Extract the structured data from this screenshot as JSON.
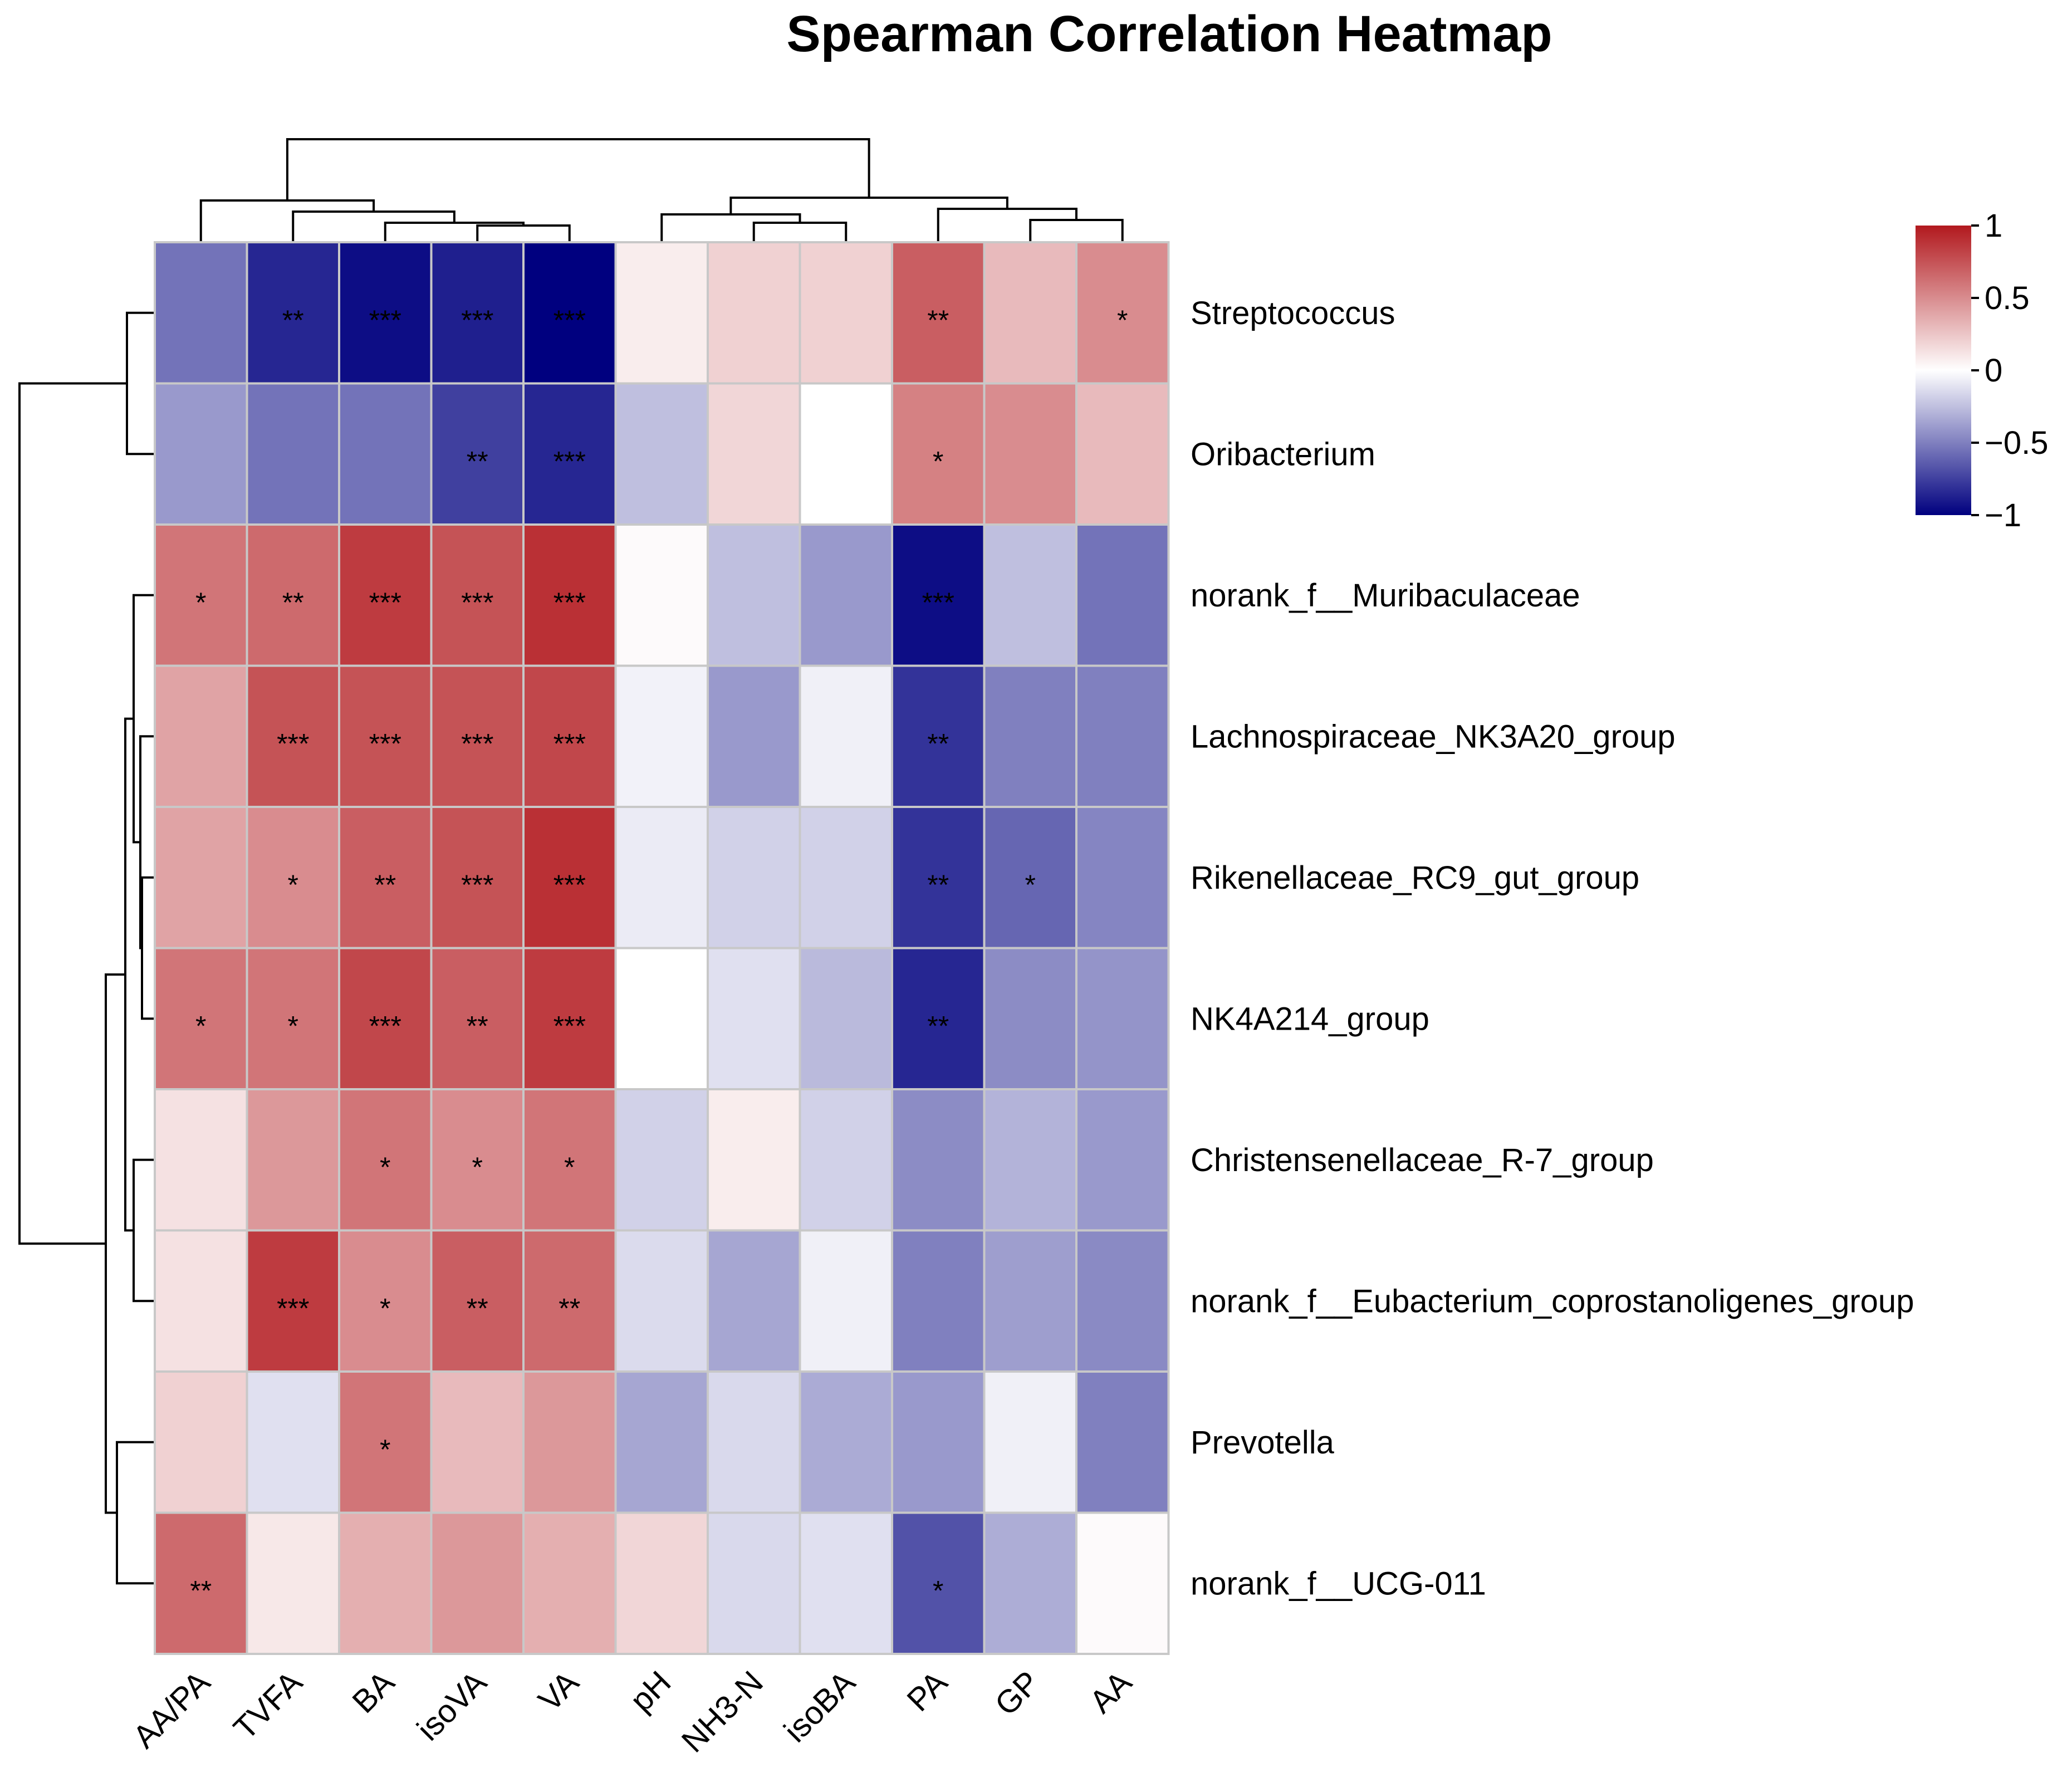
{
  "chart_data": {
    "type": "heatmap",
    "title": "Spearman Correlation Heatmap",
    "columns": [
      "AA/PA",
      "TVFA",
      "BA",
      "isoVA",
      "VA",
      "pH",
      "NH3-N",
      "isoBA",
      "PA",
      "GP",
      "AA"
    ],
    "rows": [
      "Streptococcus",
      "Oribacterium",
      "norank_f__Muribaculaceae",
      "Lachnospiraceae_NK3A20_group",
      "Rikenellaceae_RC9_gut_group",
      "NK4A214_group",
      "Christensenellaceae_R-7_group",
      "norank_f__Eubacterium_coprostanoligenes_group",
      "Prevotella",
      "norank_f__UCG-011"
    ],
    "values": [
      [
        -0.55,
        -0.85,
        -0.95,
        -0.88,
        -1.0,
        0.08,
        0.2,
        0.2,
        0.7,
        0.3,
        0.5
      ],
      [
        -0.4,
        -0.55,
        -0.55,
        -0.75,
        -0.85,
        -0.25,
        0.18,
        0.0,
        0.55,
        0.5,
        0.3
      ],
      [
        0.6,
        0.65,
        0.85,
        0.75,
        0.9,
        0.02,
        -0.25,
        -0.4,
        -0.95,
        -0.25,
        -0.55
      ],
      [
        0.4,
        0.75,
        0.75,
        0.75,
        0.8,
        -0.05,
        -0.4,
        -0.06,
        -0.8,
        -0.5,
        -0.5
      ],
      [
        0.4,
        0.5,
        0.7,
        0.75,
        0.9,
        -0.08,
        -0.18,
        -0.18,
        -0.8,
        -0.6,
        -0.48
      ],
      [
        0.6,
        0.6,
        0.8,
        0.7,
        0.85,
        0.0,
        -0.12,
        -0.27,
        -0.85,
        -0.45,
        -0.42
      ],
      [
        0.13,
        0.45,
        0.6,
        0.5,
        0.6,
        -0.18,
        0.08,
        -0.18,
        -0.45,
        -0.3,
        -0.4
      ],
      [
        0.13,
        0.85,
        0.5,
        0.7,
        0.65,
        -0.14,
        -0.35,
        -0.06,
        -0.5,
        -0.38,
        -0.46
      ],
      [
        0.2,
        -0.12,
        0.6,
        0.3,
        0.45,
        -0.35,
        -0.15,
        -0.33,
        -0.4,
        -0.06,
        -0.5
      ],
      [
        0.65,
        0.1,
        0.35,
        0.45,
        0.35,
        0.18,
        -0.15,
        -0.12,
        -0.68,
        -0.32,
        0.02
      ]
    ],
    "significance": [
      [
        "",
        "**",
        "***",
        "***",
        "***",
        "",
        "",
        "",
        "**",
        "",
        "*"
      ],
      [
        "",
        "",
        "",
        "**",
        "***",
        "",
        "",
        "",
        "*",
        "",
        ""
      ],
      [
        "*",
        "**",
        "***",
        "***",
        "***",
        "",
        "",
        "",
        "***",
        "",
        ""
      ],
      [
        "",
        "***",
        "***",
        "***",
        "***",
        "",
        "",
        "",
        "**",
        "",
        ""
      ],
      [
        "",
        "*",
        "**",
        "***",
        "***",
        "",
        "",
        "",
        "**",
        "*",
        ""
      ],
      [
        "*",
        "*",
        "***",
        "**",
        "***",
        "",
        "",
        "",
        "**",
        "",
        ""
      ],
      [
        "",
        "",
        "*",
        "*",
        "*",
        "",
        "",
        "",
        "",
        "",
        ""
      ],
      [
        "",
        "***",
        "*",
        "**",
        "**",
        "",
        "",
        "",
        "",
        "",
        ""
      ],
      [
        "",
        "",
        "*",
        "",
        "",
        "",
        "",
        "",
        "",
        "",
        ""
      ],
      [
        "**",
        "",
        "",
        "",
        "",
        "",
        "",
        "",
        "*",
        "",
        ""
      ]
    ],
    "color_scale": {
      "min": -1,
      "max": 1,
      "low_color": "#00007f",
      "mid_color": "#ffffff",
      "high_color": "#b2191e",
      "ticks": [
        "1",
        "0.5",
        "0",
        "−0.5",
        "−1"
      ]
    },
    "legend_position": "top-right",
    "column_dendrogram": true,
    "row_dendrogram": true
  }
}
